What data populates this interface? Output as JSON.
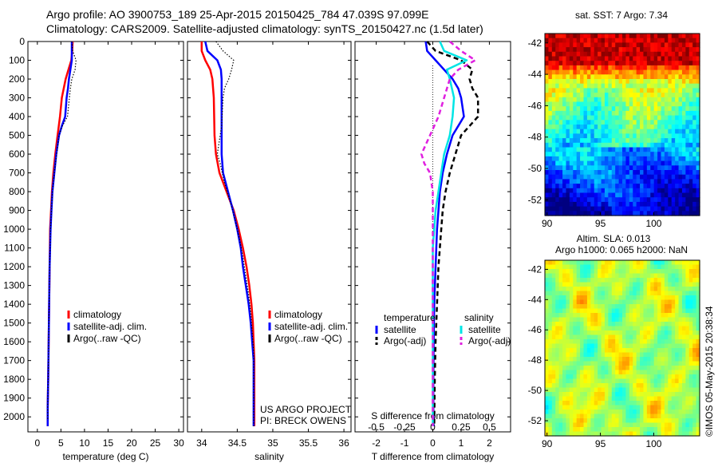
{
  "title_line1": "Argo profile: AO 3900753_189 25-Apr-2015 20150425_784 47.039S 97.099E",
  "title_line2": "Climatology: CARS2009. Satellite-adjusted climatology: synTS_20150427.nc (1.5d later)",
  "colors": {
    "climatology": "#ff0000",
    "satellite": "#0000ff",
    "argo": "#000000",
    "sal_diff_satellite": "#00e5e5",
    "sal_diff_argo": "#e020e0"
  },
  "depth_ticks": [
    0,
    100,
    200,
    300,
    400,
    500,
    600,
    700,
    800,
    900,
    1000,
    1100,
    1200,
    1300,
    1400,
    1500,
    1600,
    1700,
    1800,
    1900,
    2000
  ],
  "legend_profile": [
    "climatology",
    "satellite-adj. clim.",
    "Argo(..raw -QC)"
  ],
  "project_text": [
    "US ARGO PROJECT",
    "PI: BRECK OWENS"
  ],
  "diff_legend": {
    "temp_head": "temperature",
    "sal_head": "salinity",
    "items": [
      "satellite",
      "Argo(-adj)",
      "satellite",
      "Argo(-adj)"
    ]
  },
  "sst_title": "sat. SST: 7 Argo: 7.34",
  "sla_title": [
    "Altim. SLA: 0.013",
    "Argo h1000: 0.065 h2000: NaN"
  ],
  "credit": "©IMOS 05-May-2015 20:38:34",
  "chart_data": [
    {
      "type": "line",
      "xlabel": "temperature (deg C)",
      "xlim": [
        -2,
        31
      ],
      "xticks": [
        0,
        5,
        10,
        15,
        20,
        25,
        30
      ],
      "ylim": [
        2080,
        0
      ],
      "series": [
        {
          "name": "climatology",
          "style": "solid",
          "color": "#ff0000",
          "points": [
            [
              7.5,
              0
            ],
            [
              7.4,
              50
            ],
            [
              7.2,
              100
            ],
            [
              6.6,
              150
            ],
            [
              6.0,
              200
            ],
            [
              5.6,
              250
            ],
            [
              5.2,
              300
            ],
            [
              4.8,
              400
            ],
            [
              4.3,
              500
            ],
            [
              3.8,
              600
            ],
            [
              3.4,
              700
            ],
            [
              3.1,
              800
            ],
            [
              2.9,
              900
            ],
            [
              2.7,
              1000
            ],
            [
              2.6,
              1200
            ],
            [
              2.5,
              1400
            ],
            [
              2.4,
              1600
            ],
            [
              2.3,
              1800
            ],
            [
              2.2,
              1950
            ],
            [
              2.2,
              2050
            ]
          ]
        },
        {
          "name": "satellite-adj. clim.",
          "style": "solid",
          "color": "#0000ff",
          "points": [
            [
              7.3,
              0
            ],
            [
              7.3,
              50
            ],
            [
              7.3,
              100
            ],
            [
              7.0,
              150
            ],
            [
              6.7,
              200
            ],
            [
              6.5,
              250
            ],
            [
              6.2,
              300
            ],
            [
              5.9,
              400
            ],
            [
              5.2,
              450
            ],
            [
              4.6,
              500
            ],
            [
              4.0,
              600
            ],
            [
              3.6,
              700
            ],
            [
              3.2,
              800
            ],
            [
              3.0,
              900
            ],
            [
              2.8,
              1000
            ],
            [
              2.6,
              1200
            ],
            [
              2.5,
              1400
            ],
            [
              2.4,
              1600
            ],
            [
              2.3,
              1800
            ],
            [
              2.2,
              1950
            ],
            [
              2.2,
              2050
            ]
          ]
        },
        {
          "name": "Argo(..raw -QC)",
          "style": "dotted",
          "color": "#000000",
          "points": [
            [
              7.3,
              0
            ],
            [
              7.5,
              50
            ],
            [
              8.2,
              100
            ],
            [
              8.0,
              150
            ],
            [
              7.3,
              200
            ],
            [
              7.0,
              250
            ],
            [
              6.8,
              300
            ],
            [
              6.4,
              400
            ],
            [
              5.3,
              450
            ],
            [
              4.6,
              500
            ],
            [
              4.1,
              600
            ],
            [
              3.6,
              700
            ],
            [
              3.2,
              800
            ],
            [
              3.0,
              900
            ],
            [
              2.8,
              1000
            ],
            [
              2.6,
              1200
            ],
            [
              2.5,
              1400
            ],
            [
              2.4,
              1600
            ],
            [
              2.3,
              1800
            ],
            [
              2.2,
              1950
            ],
            [
              2.2,
              2020
            ]
          ]
        }
      ]
    },
    {
      "type": "line",
      "xlabel": "salinity",
      "xlim": [
        33.8,
        36.1
      ],
      "xticks": [
        34,
        34.5,
        35,
        35.5,
        36
      ],
      "ylim": [
        2080,
        0
      ],
      "series": [
        {
          "name": "climatology",
          "style": "solid",
          "color": "#ff0000",
          "points": [
            [
              34.0,
              0
            ],
            [
              34.0,
              50
            ],
            [
              34.05,
              100
            ],
            [
              34.12,
              150
            ],
            [
              34.15,
              200
            ],
            [
              34.17,
              300
            ],
            [
              34.18,
              500
            ],
            [
              34.2,
              600
            ],
            [
              34.25,
              700
            ],
            [
              34.35,
              800
            ],
            [
              34.45,
              900
            ],
            [
              34.52,
              1000
            ],
            [
              34.58,
              1100
            ],
            [
              34.63,
              1200
            ],
            [
              34.67,
              1300
            ],
            [
              34.7,
              1400
            ],
            [
              34.72,
              1500
            ],
            [
              34.73,
              1600
            ],
            [
              34.74,
              1700
            ],
            [
              34.74,
              1800
            ],
            [
              34.74,
              1900
            ],
            [
              34.74,
              2050
            ]
          ]
        },
        {
          "name": "satellite-adj. clim.",
          "style": "solid",
          "color": "#0000ff",
          "points": [
            [
              34.05,
              0
            ],
            [
              34.08,
              50
            ],
            [
              34.22,
              100
            ],
            [
              34.27,
              150
            ],
            [
              34.28,
              200
            ],
            [
              34.28,
              300
            ],
            [
              34.28,
              500
            ],
            [
              34.28,
              600
            ],
            [
              34.3,
              700
            ],
            [
              34.37,
              800
            ],
            [
              34.44,
              900
            ],
            [
              34.5,
              1000
            ],
            [
              34.55,
              1100
            ],
            [
              34.58,
              1200
            ],
            [
              34.62,
              1300
            ],
            [
              34.66,
              1400
            ],
            [
              34.69,
              1500
            ],
            [
              34.71,
              1600
            ],
            [
              34.73,
              1700
            ],
            [
              34.73,
              1800
            ],
            [
              34.73,
              1900
            ],
            [
              34.73,
              2050
            ]
          ]
        },
        {
          "name": "Argo(..raw -QC)",
          "style": "dotted",
          "color": "#000000",
          "points": [
            [
              34.2,
              0
            ],
            [
              34.3,
              50
            ],
            [
              34.45,
              100
            ],
            [
              34.42,
              150
            ],
            [
              34.38,
              200
            ],
            [
              34.32,
              250
            ],
            [
              34.3,
              300
            ],
            [
              34.28,
              450
            ],
            [
              34.24,
              550
            ],
            [
              34.22,
              600
            ],
            [
              34.26,
              650
            ],
            [
              34.32,
              750
            ],
            [
              34.4,
              850
            ],
            [
              34.47,
              950
            ],
            [
              34.53,
              1050
            ],
            [
              34.58,
              1150
            ],
            [
              34.62,
              1250
            ],
            [
              34.66,
              1350
            ],
            [
              34.69,
              1450
            ],
            [
              34.71,
              1550
            ],
            [
              34.73,
              1650
            ],
            [
              34.73,
              1750
            ],
            [
              34.73,
              1850
            ],
            [
              34.73,
              1950
            ],
            [
              34.73,
              2050
            ]
          ]
        }
      ]
    },
    {
      "type": "line",
      "xlabel": "T difference from climatology",
      "xlabel2": "S difference from climatology",
      "xlim": [
        -2.75,
        2.75
      ],
      "xticks": [
        -2,
        -1,
        0,
        1,
        2
      ],
      "xticks_s": [
        "-0.5",
        "-0.25",
        "0",
        "0.25",
        "0.5"
      ],
      "ylim": [
        2080,
        0
      ],
      "series": [
        {
          "name": "temperature satellite",
          "style": "solid",
          "color": "#0000ff",
          "points": [
            [
              -0.25,
              0
            ],
            [
              -0.2,
              50
            ],
            [
              0.1,
              100
            ],
            [
              0.4,
              150
            ],
            [
              0.7,
              200
            ],
            [
              0.9,
              250
            ],
            [
              1.0,
              300
            ],
            [
              1.1,
              400
            ],
            [
              0.9,
              450
            ],
            [
              0.7,
              500
            ],
            [
              0.5,
              600
            ],
            [
              0.35,
              700
            ],
            [
              0.25,
              800
            ],
            [
              0.2,
              900
            ],
            [
              0.15,
              1000
            ],
            [
              0.1,
              1200
            ],
            [
              0.05,
              1400
            ],
            [
              0.03,
              1600
            ],
            [
              0.02,
              1800
            ],
            [
              0.02,
              2050
            ]
          ]
        },
        {
          "name": "temperature Argo(-adj)",
          "style": "dashed",
          "color": "#000000",
          "points": [
            [
              -0.2,
              0
            ],
            [
              0.1,
              50
            ],
            [
              1.0,
              100
            ],
            [
              1.4,
              150
            ],
            [
              1.3,
              200
            ],
            [
              1.4,
              250
            ],
            [
              1.6,
              300
            ],
            [
              1.6,
              400
            ],
            [
              1.3,
              450
            ],
            [
              1.0,
              500
            ],
            [
              0.8,
              600
            ],
            [
              0.6,
              700
            ],
            [
              0.45,
              800
            ],
            [
              0.35,
              900
            ],
            [
              0.3,
              1000
            ],
            [
              0.2,
              1200
            ],
            [
              0.15,
              1400
            ],
            [
              0.1,
              1600
            ],
            [
              0.07,
              1800
            ],
            [
              0.05,
              2050
            ]
          ]
        },
        {
          "name": "salinity satellite",
          "style": "solid",
          "color": "#00e5e5",
          "points": [
            [
              0.25,
              0
            ],
            [
              0.4,
              50
            ],
            [
              1.2,
              100
            ],
            [
              0.5,
              150
            ],
            [
              0.6,
              200
            ],
            [
              0.75,
              300
            ],
            [
              0.7,
              400
            ],
            [
              0.6,
              500
            ],
            [
              0.4,
              600
            ],
            [
              0.3,
              700
            ],
            [
              0.2,
              800
            ],
            [
              0.1,
              900
            ],
            [
              0.05,
              1000
            ],
            [
              0.0,
              1100
            ],
            [
              0.0,
              1200
            ],
            [
              0.0,
              1400
            ],
            [
              0.0,
              1600
            ],
            [
              0.0,
              1800
            ],
            [
              0.0,
              2050
            ]
          ]
        },
        {
          "name": "salinity Argo(-adj)",
          "style": "dashed",
          "color": "#e020e0",
          "points": [
            [
              0.6,
              0
            ],
            [
              1.0,
              50
            ],
            [
              1.5,
              100
            ],
            [
              0.9,
              150
            ],
            [
              0.6,
              200
            ],
            [
              0.4,
              300
            ],
            [
              0.2,
              400
            ],
            [
              -0.1,
              500
            ],
            [
              -0.4,
              600
            ],
            [
              -0.3,
              650
            ],
            [
              -0.1,
              700
            ],
            [
              0.0,
              800
            ],
            [
              0.0,
              900
            ],
            [
              0.0,
              1100
            ],
            [
              0.0,
              1400
            ],
            [
              0.0,
              1700
            ],
            [
              0.0,
              2050
            ]
          ]
        }
      ]
    },
    {
      "type": "heatmap",
      "title": "sat. SST: 7 Argo: 7.34",
      "x_ticks": [
        90,
        95,
        100
      ],
      "y_ticks": [
        -42,
        -44,
        -46,
        -48,
        -50,
        -52
      ],
      "xlim": [
        89.8,
        104.3
      ],
      "ylim": [
        -53,
        -41.4
      ]
    },
    {
      "type": "heatmap",
      "title": "Altim. SLA: 0.013",
      "x_ticks": [
        90,
        95,
        100
      ],
      "y_ticks": [
        -42,
        -44,
        -46,
        -48,
        -50,
        -52
      ],
      "xlim": [
        89.8,
        104.3
      ],
      "ylim": [
        -53,
        -41.4
      ]
    }
  ]
}
